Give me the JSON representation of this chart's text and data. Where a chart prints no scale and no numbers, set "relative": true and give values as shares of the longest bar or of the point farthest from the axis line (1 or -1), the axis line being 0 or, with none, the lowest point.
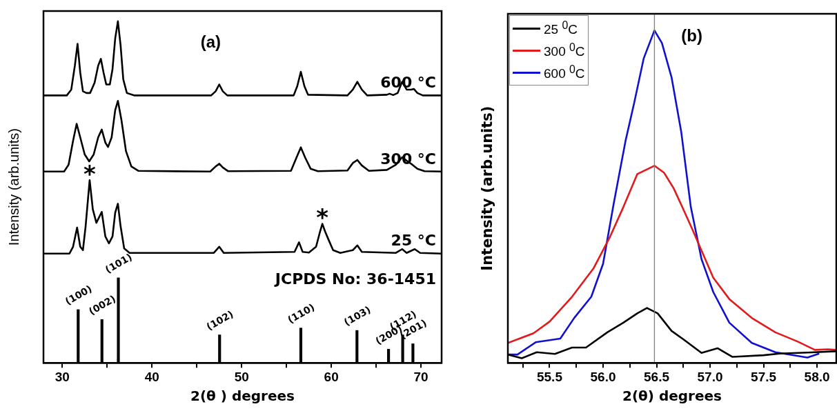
{
  "chart_data": [
    {
      "type": "line",
      "title": "(a)",
      "xlabel": "2(θ ) degrees",
      "ylabel": "Intensity (arb.units)",
      "relative": true,
      "xlim": [
        27.9,
        72.3
      ],
      "xticks": [
        30,
        {
          "value": 35,
          "label": null
        },
        40,
        {
          "value": 45,
          "label": null
        },
        50,
        {
          "value": 55,
          "label": null
        },
        60,
        {
          "value": 65,
          "label": null
        },
        70
      ],
      "legend": false,
      "marker": "none",
      "line_style": "solid",
      "series": [
        {
          "name": "600 °C",
          "color": "#000000",
          "x": [
            27.9,
            30.5,
            31.0,
            31.4,
            31.7,
            32.0,
            32.3,
            32.7,
            33.1,
            33.6,
            34.0,
            34.3,
            34.6,
            34.9,
            35.3,
            35.6,
            35.9,
            36.2,
            36.5,
            36.8,
            37.2,
            38,
            46.6,
            47.1,
            47.5,
            47.9,
            48.4,
            55.8,
            56.2,
            56.6,
            57.0,
            57.4,
            61.8,
            62.4,
            62.9,
            63.4,
            64,
            66.2,
            66.5,
            66.9,
            67.4,
            67.9,
            68.4,
            68.9,
            69.2,
            69.6,
            70.2,
            72.3
          ],
          "values": [
            0.783,
            0.783,
            0.8,
            0.87,
            0.934,
            0.85,
            0.795,
            0.79,
            0.79,
            0.82,
            0.87,
            0.89,
            0.85,
            0.815,
            0.815,
            0.86,
            0.95,
            1.0,
            0.93,
            0.83,
            0.79,
            0.783,
            0.783,
            0.795,
            0.815,
            0.795,
            0.783,
            0.783,
            0.81,
            0.852,
            0.81,
            0.785,
            0.783,
            0.8,
            0.823,
            0.8,
            0.783,
            0.785,
            0.788,
            0.784,
            0.79,
            0.823,
            0.8,
            0.8,
            0.802,
            0.79,
            0.783,
            0.783
          ]
        },
        {
          "name": "300 °C",
          "color": "#000000",
          "x": [
            27.9,
            30.2,
            30.7,
            31.2,
            31.6,
            32.0,
            32.5,
            33.0,
            33.5,
            34.0,
            34.4,
            34.8,
            35.1,
            35.5,
            35.9,
            36.2,
            36.6,
            37.1,
            37.7,
            38.5,
            46.5,
            47.1,
            47.5,
            47.9,
            48.5,
            55.5,
            56.1,
            56.6,
            57.1,
            57.7,
            58.5,
            61.8,
            62.4,
            62.9,
            63.4,
            64.2,
            66.2,
            67.2,
            67.9,
            68.5,
            69.0,
            69.6,
            70.4,
            72.3
          ],
          "values": [
            0.56,
            0.56,
            0.58,
            0.65,
            0.7,
            0.66,
            0.61,
            0.59,
            0.61,
            0.66,
            0.683,
            0.645,
            0.632,
            0.66,
            0.74,
            0.767,
            0.71,
            0.62,
            0.575,
            0.562,
            0.56,
            0.575,
            0.583,
            0.572,
            0.561,
            0.562,
            0.6,
            0.631,
            0.6,
            0.568,
            0.561,
            0.563,
            0.585,
            0.594,
            0.578,
            0.562,
            0.565,
            0.58,
            0.602,
            0.59,
            0.581,
            0.568,
            0.561,
            0.56
          ]
        },
        {
          "name": "25 °C",
          "color": "#000000",
          "x": [
            27.9,
            30.8,
            31.2,
            31.65,
            32.0,
            32.3,
            32.6,
            33.05,
            33.4,
            33.8,
            34.4,
            34.8,
            35.2,
            35.6,
            35.9,
            36.2,
            36.5,
            36.9,
            37.5,
            46.9,
            47.5,
            48.0,
            55.9,
            56.4,
            56.8,
            57.5,
            58.3,
            58.7,
            59.0,
            59.3,
            59.7,
            60.2,
            61,
            62.4,
            62.9,
            63.4,
            67.2,
            67.9,
            68.4,
            69.3,
            69.9,
            72.3
          ],
          "values": [
            0.32,
            0.32,
            0.34,
            0.396,
            0.34,
            0.33,
            0.4,
            0.535,
            0.45,
            0.41,
            0.442,
            0.37,
            0.35,
            0.37,
            0.44,
            0.466,
            0.4,
            0.335,
            0.322,
            0.322,
            0.34,
            0.322,
            0.325,
            0.353,
            0.325,
            0.323,
            0.34,
            0.38,
            0.407,
            0.385,
            0.36,
            0.33,
            0.322,
            0.33,
            0.344,
            0.325,
            0.322,
            0.333,
            0.322,
            0.333,
            0.322,
            0.32
          ]
        },
        {
          "type": "bar",
          "color": "#000000",
          "x": [
            31.77,
            34.42,
            36.25,
            47.54,
            56.6,
            62.86,
            66.38,
            67.96,
            69.1
          ],
          "values": [
            0.156,
            0.127,
            0.249,
            0.082,
            0.102,
            0.095,
            0.04,
            0.082,
            0.056
          ]
        }
      ],
      "annotations": [
        "JCPDS No: 36-1451",
        {
          "text": "*",
          "x": 33.05,
          "y": 0.535
        },
        {
          "text": "*",
          "x": 59.0,
          "y": 0.407
        },
        {
          "text": "(100)",
          "x": 31.77,
          "y": 0.156
        },
        {
          "text": "(002)",
          "x": 34.42,
          "y": 0.127
        },
        {
          "text": "(101)",
          "x": 36.25,
          "y": 0.249
        },
        {
          "text": "(102)",
          "x": 47.54,
          "y": 0.082
        },
        {
          "text": "(110)",
          "x": 56.6,
          "y": 0.102
        },
        {
          "text": "(103)",
          "x": 62.86,
          "y": 0.095
        },
        {
          "text": "(200)",
          "x": 66.38,
          "y": 0.04
        },
        {
          "text": "(112)",
          "x": 67.96,
          "y": 0.082
        },
        {
          "text": "(201)",
          "x": 69.1,
          "y": 0.056
        }
      ]
    },
    {
      "type": "line",
      "title": "(b)",
      "xlabel": "2(θ) degrees",
      "ylabel": "Intensity (arb.units)",
      "relative": true,
      "xlim": [
        55.11,
        58.18
      ],
      "xticks": [
        {
          "value": 55.25,
          "label": null
        },
        55.5,
        {
          "value": 55.75,
          "label": null
        },
        {
          "value": 56,
          "label": "56.0"
        },
        {
          "value": 56.25,
          "label": null
        },
        56.5,
        {
          "value": 56.75,
          "label": null
        },
        {
          "value": 57,
          "label": "57.0"
        },
        {
          "value": 57.25,
          "label": null
        },
        57.5,
        {
          "value": 57.75,
          "label": null
        },
        {
          "value": 58,
          "label": "58.0"
        }
      ],
      "legend": "top left",
      "marker": "none",
      "line_style": "solid",
      "ref_lines": [
        {
          "axis": "x",
          "value": 56.48,
          "color": "#808080"
        }
      ],
      "series": [
        {
          "name": "25 $^{0}$C",
          "color": "#000000",
          "x": [
            55.11,
            55.24,
            55.38,
            55.55,
            55.71,
            55.84,
            56.04,
            56.19,
            56.32,
            56.41,
            56.51,
            56.64,
            56.75,
            56.92,
            57.07,
            57.21,
            57.5,
            57.65,
            57.91,
            58.18
          ],
          "values": [
            0.025,
            0.014,
            0.032,
            0.027,
            0.046,
            0.046,
            0.092,
            0.121,
            0.149,
            0.165,
            0.149,
            0.096,
            0.071,
            0.03,
            0.044,
            0.018,
            0.023,
            0.028,
            0.031,
            0.035
          ]
        },
        {
          "name": "300 $^{0}$C",
          "color": "#e31a1c",
          "x": [
            55.11,
            55.35,
            55.5,
            55.71,
            55.91,
            56.06,
            56.19,
            56.32,
            56.48,
            56.57,
            56.66,
            56.75,
            56.83,
            57.03,
            57.18,
            57.39,
            57.61,
            57.82,
            57.98,
            58.1,
            58.18
          ],
          "values": [
            0.06,
            0.089,
            0.124,
            0.199,
            0.284,
            0.376,
            0.469,
            0.568,
            0.593,
            0.572,
            0.525,
            0.462,
            0.405,
            0.256,
            0.192,
            0.135,
            0.092,
            0.064,
            0.039,
            0.041,
            0.039
          ]
        },
        {
          "name": "600 $^{0}$C",
          "color": "#1010d0",
          "x": [
            55.11,
            55.2,
            55.37,
            55.6,
            55.73,
            55.89,
            56.0,
            56.1,
            56.21,
            56.29,
            56.38,
            56.48,
            56.55,
            56.64,
            56.73,
            56.82,
            56.92,
            57.03,
            57.18,
            57.39,
            57.61,
            57.91,
            58.02
          ],
          "values": [
            0.025,
            0.025,
            0.062,
            0.073,
            0.135,
            0.199,
            0.298,
            0.48,
            0.668,
            0.781,
            0.916,
            1.0,
            0.962,
            0.859,
            0.696,
            0.469,
            0.312,
            0.213,
            0.121,
            0.06,
            0.032,
            0.016,
            0.028
          ]
        }
      ]
    }
  ]
}
